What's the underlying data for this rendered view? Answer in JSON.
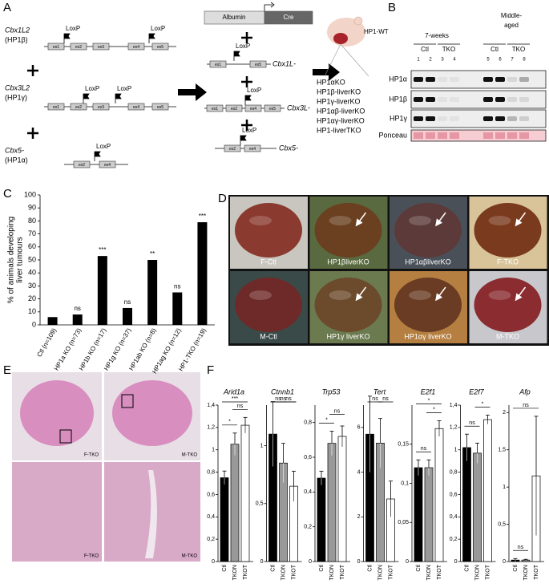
{
  "panel_labels": [
    "A",
    "B",
    "C",
    "D",
    "E",
    "F"
  ],
  "diagram": {
    "genes_left": [
      {
        "name": "Cbx1L2",
        "sub": "(HP1β)",
        "exons": [
          "ex1",
          "ex2",
          "ex3",
          "ex4",
          "ex5"
        ],
        "loxp": [
          "LoxP",
          "LoxP"
        ]
      },
      {
        "name": "Cbx3L2",
        "sub": "(HP1γ)",
        "exons": [
          "ex1",
          "ex2",
          "ex3",
          "ex4",
          "ex5"
        ],
        "loxp": [
          "LoxP",
          "LoxP"
        ]
      },
      {
        "name": "Cbx5-",
        "sub": "(HP1α)",
        "exons": [
          "ex2",
          "ex4"
        ],
        "loxp": [
          "LoxP"
        ]
      }
    ],
    "albumin": "Albumin",
    "cre": "Cre",
    "genes_right": [
      {
        "name": "Cbx1L-",
        "exons": [
          "ex1",
          "ex5"
        ],
        "loxp": [
          "LoxP"
        ]
      },
      {
        "name": "Cbx3L-",
        "exons": [
          "ex1",
          "ex2",
          "ex4",
          "ex5"
        ],
        "loxp": [
          "LoxP"
        ]
      },
      {
        "name": "Cbx5-",
        "exons": [
          "ex2",
          "ex4"
        ],
        "loxp": [
          "LoxP"
        ]
      }
    ],
    "wt_label": "HP1-WT",
    "mutants": [
      "HP1αKO",
      "HP1β-liverKO",
      "HP1γ-liverKO",
      "HP1αβ-liverKO",
      "HP1αγ-liverKO",
      "HP1-liverTKO"
    ]
  },
  "blot": {
    "age_groups": [
      "7-weeks",
      [
        "Middle-",
        "aged"
      ]
    ],
    "groups": [
      "Ctl",
      "TKO",
      "Ctl",
      "TKO"
    ],
    "lanes": [
      "1",
      "2",
      "3",
      "4",
      "5",
      "6",
      "7",
      "8"
    ],
    "rows": [
      "HP1α",
      "HP1β",
      "HP1γ",
      "Ponceau"
    ]
  },
  "photos": [
    "F-Ctl",
    "HP1βliverKO",
    "HP1αβliverKO",
    "F-TKO",
    "M-Ctl",
    "HP1γ liverKO",
    "HP1αγ liverKO",
    "M-TKO"
  ],
  "histology": [
    "F-TKO",
    "M-TKO",
    "F-TKO",
    "M-TKO"
  ],
  "chart_data": [
    {
      "type": "bar",
      "y_label": [
        "% of animals developing",
        "liver tumours"
      ],
      "categories": [
        "Ctl (n=109)",
        "HP1a KO (n=73)",
        "HP1b KO (n=17)",
        "HP1g KO (n=37)",
        "HP1ab KO (n=8)",
        "HP1ag KO (n=12)",
        "HP1-TKO (n=19)"
      ],
      "values": [
        6,
        8,
        53,
        13,
        50,
        25,
        79
      ],
      "annotations": [
        null,
        "ns",
        "***",
        "ns",
        "**",
        "ns",
        "***"
      ],
      "color": "#000000",
      "ylim": [
        0,
        100
      ],
      "yticks": [
        0,
        10,
        20,
        30,
        40,
        50,
        60,
        70,
        80,
        90,
        100
      ]
    },
    {
      "type": "errorbar",
      "title": "Arid1a",
      "categories": [
        "Ctl",
        "TKON",
        "TKOT"
      ],
      "colors": [
        "#000000",
        "#999999",
        "#ffffff"
      ],
      "values": [
        0.75,
        1.05,
        1.22
      ],
      "errors": [
        0.06,
        0.1,
        0.07
      ],
      "ylim": [
        0,
        1.4
      ],
      "yticks": [
        0,
        {
          "value": 0.2,
          "label": "0,2"
        },
        {
          "value": 0.4,
          "label": "0,4"
        },
        {
          "value": 0.6,
          "label": "0,6"
        },
        {
          "value": 0.8,
          "label": "0,8"
        },
        1,
        {
          "value": 1.2,
          "label": "1,2"
        },
        {
          "value": 1.4,
          "label": "1,4"
        }
      ],
      "comparisons": [
        {
          "pair": [
            "Ctl",
            "TKON"
          ],
          "label": "*"
        },
        {
          "pair": [
            "TKON",
            "TKOT"
          ],
          "label": "ns"
        },
        {
          "pair": [
            "Ctl",
            "TKOT"
          ],
          "label": "***"
        }
      ]
    },
    {
      "type": "errorbar",
      "title": "Ctnnb1",
      "categories": [
        "Ctl",
        "TKON",
        "TKOT"
      ],
      "colors": [
        "#000000",
        "#999999",
        "#ffffff"
      ],
      "values": [
        1.1,
        0.85,
        0.65
      ],
      "errors": [
        0.28,
        0.17,
        0.13
      ],
      "ylim": [
        0,
        1.35
      ],
      "yticks": [
        0,
        {
          "value": 0.5,
          "label": "0,5"
        },
        1
      ],
      "comparisons": [
        {
          "pair": [
            "Ctl",
            "TKON"
          ],
          "label": "ns"
        },
        {
          "pair": [
            "TKON",
            "TKOT"
          ],
          "label": "ns"
        },
        {
          "pair": [
            "Ctl",
            "TKOT"
          ],
          "label": "ns"
        }
      ]
    },
    {
      "type": "errorbar",
      "title": "Trp53",
      "categories": [
        "Ctl",
        "TKON",
        "TKOT"
      ],
      "colors": [
        "#000000",
        "#999999",
        "#ffffff"
      ],
      "values": [
        0.48,
        0.68,
        0.72
      ],
      "errors": [
        0.04,
        0.07,
        0.06
      ],
      "ylim": [
        0,
        0.9
      ],
      "yticks": [
        0,
        {
          "value": 0.2,
          "label": "0,2"
        },
        {
          "value": 0.4,
          "label": "0,4"
        },
        {
          "value": 0.6,
          "label": "0,6"
        },
        {
          "value": 0.8,
          "label": "0,8"
        }
      ],
      "comparisons": [
        {
          "pair": [
            "Ctl",
            "TKON"
          ],
          "label": "*"
        },
        {
          "pair": [
            "TKON",
            "TKOT"
          ],
          "label": "ns"
        }
      ]
    },
    {
      "type": "errorbar",
      "title": "Tert",
      "categories": [
        "Ctl",
        "TKON",
        "TKOT"
      ],
      "colors": [
        "#000000",
        "#999999",
        "#ffffff"
      ],
      "values": [
        5.7,
        5.3,
        2.8
      ],
      "errors": [
        1.7,
        1.1,
        0.8
      ],
      "ylim": [
        0,
        7
      ],
      "yticks": [
        0,
        2,
        4,
        6
      ],
      "comparisons": [
        {
          "pair": [
            "Ctl",
            "TKON"
          ],
          "label": "ns"
        },
        {
          "pair": [
            "TKON",
            "TKOT"
          ],
          "label": "ns"
        }
      ]
    },
    {
      "type": "errorbar",
      "title": "E2f1",
      "categories": [
        "Ctl",
        "TKON",
        "TKOT"
      ],
      "colors": [
        "#000000",
        "#999999",
        "#ffffff"
      ],
      "values": [
        0.12,
        0.12,
        0.17
      ],
      "errors": [
        0.01,
        0.01,
        0.01
      ],
      "ylim": [
        0,
        0.2
      ],
      "yticks": [
        0,
        {
          "value": 0.05,
          "label": "0,05"
        },
        {
          "value": 0.1,
          "label": "0,1"
        },
        {
          "value": 0.15,
          "label": "0,15"
        }
      ],
      "comparisons": [
        {
          "pair": [
            "Ctl",
            "TKON"
          ],
          "label": "ns"
        },
        {
          "pair": [
            "TKON",
            "TKOT"
          ],
          "label": "*"
        },
        {
          "pair": [
            "Ctl",
            "TKOT"
          ],
          "label": "*"
        }
      ]
    },
    {
      "type": "errorbar",
      "title": "E2f7",
      "categories": [
        "Ctl",
        "TKON",
        "TKOT"
      ],
      "colors": [
        "#000000",
        "#999999",
        "#ffffff"
      ],
      "values": [
        1.02,
        0.97,
        1.27
      ],
      "errors": [
        0.12,
        0.09,
        0.04
      ],
      "ylim": [
        0,
        1.4
      ],
      "yticks": [
        0,
        {
          "value": 0.2,
          "label": "0,2"
        },
        {
          "value": 0.4,
          "label": "0,4"
        },
        {
          "value": 0.6,
          "label": "0,6"
        },
        {
          "value": 0.8,
          "label": "0,8"
        },
        1,
        {
          "value": 1.2,
          "label": "1,2"
        },
        {
          "value": 1.4,
          "label": "1,4"
        }
      ],
      "comparisons": [
        {
          "pair": [
            "Ctl",
            "TKON"
          ],
          "label": "ns"
        },
        {
          "pair": [
            "TKON",
            "TKOT"
          ],
          "label": "*"
        }
      ]
    },
    {
      "type": "errorbar",
      "title": "Afp",
      "categories": [
        "Ctl",
        "TKON",
        "TKOT"
      ],
      "colors": [
        "#000000",
        "#999999",
        "#ffffff"
      ],
      "values": [
        0.02,
        0.02,
        1.15
      ],
      "errors": [
        0.02,
        0.01,
        0.8
      ],
      "ylim": [
        0,
        2.1
      ],
      "yticks": [
        0,
        {
          "value": 0.5,
          "label": "0,5"
        },
        1,
        {
          "value": 1.5,
          "label": "1,5"
        },
        2
      ],
      "comparisons": [
        {
          "pair": [
            "Ctl",
            "TKON"
          ],
          "label": "ns"
        },
        {
          "pair": [
            "Ctl",
            "TKOT"
          ],
          "label": "ns"
        }
      ]
    }
  ]
}
